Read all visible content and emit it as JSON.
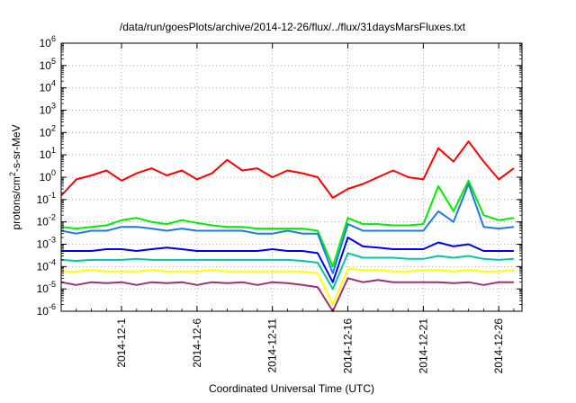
{
  "chart_data": {
    "type": "line",
    "title": "/data/run/goesPlots/archive/2014-12-26/flux/../flux/31daysMarsFluxes.txt",
    "xlabel": "Coordinated Universal Time (UTC)",
    "ylabel_base": "protons/cm",
    "ylabel_sup": "2",
    "ylabel_rest": "-s-sr-MeV",
    "y_scale": "log",
    "ylim": [
      1e-06,
      1000000.0
    ],
    "y_ticks": [
      {
        "base": "10",
        "exp": "-6",
        "value": 1e-06
      },
      {
        "base": "10",
        "exp": "-5",
        "value": 1e-05
      },
      {
        "base": "10",
        "exp": "-4",
        "value": 0.0001
      },
      {
        "base": "10",
        "exp": "-3",
        "value": 0.001
      },
      {
        "base": "10",
        "exp": "-2",
        "value": 0.01
      },
      {
        "base": "10",
        "exp": "-1",
        "value": 0.1
      },
      {
        "base": "10",
        "exp": "0",
        "value": 1
      },
      {
        "base": "10",
        "exp": "1",
        "value": 10
      },
      {
        "base": "10",
        "exp": "2",
        "value": 100
      },
      {
        "base": "10",
        "exp": "3",
        "value": 1000
      },
      {
        "base": "10",
        "exp": "4",
        "value": 10000
      },
      {
        "base": "10",
        "exp": "5",
        "value": 100000
      },
      {
        "base": "10",
        "exp": "6",
        "value": 1000000
      }
    ],
    "x_range_days": [
      2014.1127,
      2014.1227
    ],
    "x_start": "2014-11-27T00:00",
    "x_end": "2014-12-27T13:00",
    "x_ticks": [
      "2014-12-1",
      "2014-12-6",
      "2014-12-11",
      "2014-12-16",
      "2014-12-21",
      "2014-12-26"
    ],
    "x_tick_dates": [
      "2014-12-01",
      "2014-12-06",
      "2014-12-11",
      "2014-12-16",
      "2014-12-21",
      "2014-12-26"
    ],
    "grid": true,
    "legend": "none",
    "series": [
      {
        "color": "#ff0000",
        "dates": [
          "2014-11-27",
          "2014-11-28",
          "2014-11-29",
          "2014-11-30",
          "2014-12-01",
          "2014-12-02",
          "2014-12-03",
          "2014-12-04",
          "2014-12-05",
          "2014-12-06",
          "2014-12-07",
          "2014-12-08",
          "2014-12-09",
          "2014-12-10",
          "2014-12-11",
          "2014-12-12",
          "2014-12-13",
          "2014-12-14",
          "2014-12-15",
          "2014-12-16",
          "2014-12-17",
          "2014-12-18",
          "2014-12-19",
          "2014-12-20",
          "2014-12-21",
          "2014-12-22",
          "2014-12-23",
          "2014-12-24",
          "2014-12-25",
          "2014-12-26",
          "2014-12-27"
        ],
        "values": [
          0.15,
          0.8,
          1.2,
          2.0,
          0.7,
          1.5,
          2.5,
          1.2,
          2.0,
          0.8,
          1.5,
          6.0,
          2.0,
          2.5,
          1.0,
          2.0,
          1.5,
          1.0,
          0.12,
          0.3,
          0.5,
          1.0,
          2.0,
          1.0,
          0.8,
          20.0,
          5.0,
          40.0,
          5.0,
          0.8,
          2.5
        ]
      },
      {
        "color": "#00ee00",
        "dates": [
          "2014-11-27",
          "2014-11-28",
          "2014-11-29",
          "2014-11-30",
          "2014-12-01",
          "2014-12-02",
          "2014-12-03",
          "2014-12-04",
          "2014-12-05",
          "2014-12-06",
          "2014-12-07",
          "2014-12-08",
          "2014-12-09",
          "2014-12-10",
          "2014-12-11",
          "2014-12-12",
          "2014-12-13",
          "2014-12-14",
          "2014-12-15",
          "2014-12-16",
          "2014-12-17",
          "2014-12-18",
          "2014-12-19",
          "2014-12-20",
          "2014-12-21",
          "2014-12-22",
          "2014-12-23",
          "2014-12-24",
          "2014-12-25",
          "2014-12-26",
          "2014-12-27"
        ],
        "values": [
          0.006,
          0.005,
          0.006,
          0.007,
          0.012,
          0.015,
          0.01,
          0.008,
          0.012,
          0.009,
          0.007,
          0.006,
          0.006,
          0.005,
          0.005,
          0.005,
          0.005,
          0.004,
          0.0001,
          0.015,
          0.008,
          0.008,
          0.007,
          0.007,
          0.008,
          0.4,
          0.03,
          0.7,
          0.02,
          0.012,
          0.015
        ]
      },
      {
        "color": "#1e78e6",
        "dates": [
          "2014-11-27",
          "2014-11-28",
          "2014-11-29",
          "2014-11-30",
          "2014-12-01",
          "2014-12-02",
          "2014-12-03",
          "2014-12-04",
          "2014-12-05",
          "2014-12-06",
          "2014-12-07",
          "2014-12-08",
          "2014-12-09",
          "2014-12-10",
          "2014-12-11",
          "2014-12-12",
          "2014-12-13",
          "2014-12-14",
          "2014-12-15",
          "2014-12-16",
          "2014-12-17",
          "2014-12-18",
          "2014-12-19",
          "2014-12-20",
          "2014-12-21",
          "2014-12-22",
          "2014-12-23",
          "2014-12-24",
          "2014-12-25",
          "2014-12-26",
          "2014-12-27"
        ],
        "values": [
          0.004,
          0.003,
          0.004,
          0.004,
          0.006,
          0.006,
          0.005,
          0.004,
          0.005,
          0.004,
          0.004,
          0.004,
          0.004,
          0.003,
          0.003,
          0.004,
          0.003,
          0.003,
          5e-05,
          0.008,
          0.004,
          0.004,
          0.004,
          0.004,
          0.004,
          0.03,
          0.01,
          0.5,
          0.006,
          0.005,
          0.006
        ]
      },
      {
        "color": "#0000ee",
        "dates": [
          "2014-11-27",
          "2014-11-28",
          "2014-11-29",
          "2014-11-30",
          "2014-12-01",
          "2014-12-02",
          "2014-12-03",
          "2014-12-04",
          "2014-12-05",
          "2014-12-06",
          "2014-12-07",
          "2014-12-08",
          "2014-12-09",
          "2014-12-10",
          "2014-12-11",
          "2014-12-12",
          "2014-12-13",
          "2014-12-14",
          "2014-12-15",
          "2014-12-16",
          "2014-12-17",
          "2014-12-18",
          "2014-12-19",
          "2014-12-20",
          "2014-12-21",
          "2014-12-22",
          "2014-12-23",
          "2014-12-24",
          "2014-12-25",
          "2014-12-26",
          "2014-12-27"
        ],
        "values": [
          0.0005,
          0.0005,
          0.0005,
          0.0006,
          0.0006,
          0.0005,
          0.0006,
          0.0007,
          0.0006,
          0.0005,
          0.0005,
          0.0005,
          0.0005,
          0.0005,
          0.0006,
          0.0005,
          0.0005,
          0.0004,
          2e-05,
          0.002,
          0.0008,
          0.0007,
          0.0006,
          0.0006,
          0.0006,
          0.0012,
          0.0008,
          0.001,
          0.0005,
          0.0005,
          0.0005
        ]
      },
      {
        "color": "#00c8a0",
        "dates": [
          "2014-11-27",
          "2014-11-28",
          "2014-11-29",
          "2014-11-30",
          "2014-12-01",
          "2014-12-02",
          "2014-12-03",
          "2014-12-04",
          "2014-12-05",
          "2014-12-06",
          "2014-12-07",
          "2014-12-08",
          "2014-12-09",
          "2014-12-10",
          "2014-12-11",
          "2014-12-12",
          "2014-12-13",
          "2014-12-14",
          "2014-12-15",
          "2014-12-16",
          "2014-12-17",
          "2014-12-18",
          "2014-12-19",
          "2014-12-20",
          "2014-12-21",
          "2014-12-22",
          "2014-12-23",
          "2014-12-24",
          "2014-12-25",
          "2014-12-26",
          "2014-12-27"
        ],
        "values": [
          0.0002,
          0.00018,
          0.0002,
          0.0002,
          0.0002,
          0.00022,
          0.0002,
          0.0002,
          0.0002,
          0.0002,
          0.0002,
          0.0002,
          0.0002,
          0.0002,
          0.0002,
          0.0002,
          0.00018,
          0.00015,
          1e-05,
          0.0004,
          0.00025,
          0.00025,
          0.00025,
          0.00022,
          0.00022,
          0.0003,
          0.00025,
          0.0003,
          0.00022,
          0.0002,
          0.00022
        ]
      },
      {
        "color": "#ffff00",
        "dates": [
          "2014-11-27",
          "2014-11-28",
          "2014-11-29",
          "2014-11-30",
          "2014-12-01",
          "2014-12-02",
          "2014-12-03",
          "2014-12-04",
          "2014-12-05",
          "2014-12-06",
          "2014-12-07",
          "2014-12-08",
          "2014-12-09",
          "2014-12-10",
          "2014-12-11",
          "2014-12-12",
          "2014-12-13",
          "2014-12-14",
          "2014-12-15",
          "2014-12-16",
          "2014-12-17",
          "2014-12-18",
          "2014-12-19",
          "2014-12-20",
          "2014-12-21",
          "2014-12-22",
          "2014-12-23",
          "2014-12-24",
          "2014-12-25",
          "2014-12-26",
          "2014-12-27"
        ],
        "values": [
          6e-05,
          6e-05,
          7e-05,
          6e-05,
          6e-05,
          6e-05,
          7e-05,
          6e-05,
          6e-05,
          6e-05,
          7e-05,
          6e-05,
          6e-05,
          6e-05,
          6e-05,
          6e-05,
          6e-05,
          5e-05,
          2e-06,
          8e-05,
          7e-05,
          7e-05,
          6e-05,
          6e-05,
          7e-05,
          7e-05,
          6e-05,
          7e-05,
          6e-05,
          6e-05,
          7e-05
        ]
      },
      {
        "color": "#a0306e",
        "dates": [
          "2014-11-27",
          "2014-11-28",
          "2014-11-29",
          "2014-11-30",
          "2014-12-01",
          "2014-12-02",
          "2014-12-03",
          "2014-12-04",
          "2014-12-05",
          "2014-12-06",
          "2014-12-07",
          "2014-12-08",
          "2014-12-09",
          "2014-12-10",
          "2014-12-11",
          "2014-12-12",
          "2014-12-13",
          "2014-12-14",
          "2014-12-15",
          "2014-12-16",
          "2014-12-17",
          "2014-12-18",
          "2014-12-19",
          "2014-12-20",
          "2014-12-21",
          "2014-12-22",
          "2014-12-23",
          "2014-12-24",
          "2014-12-25",
          "2014-12-26",
          "2014-12-27"
        ],
        "values": [
          2e-05,
          1.5e-05,
          2e-05,
          1.8e-05,
          2e-05,
          1.5e-05,
          2e-05,
          1.8e-05,
          2e-05,
          1.5e-05,
          2e-05,
          1.8e-05,
          2e-05,
          1.5e-05,
          2e-05,
          1.8e-05,
          1.5e-05,
          1.2e-05,
          1e-06,
          3e-05,
          2e-05,
          2.5e-05,
          2e-05,
          2e-05,
          2e-05,
          2e-05,
          1.8e-05,
          2e-05,
          1.5e-05,
          2e-05,
          2e-05
        ]
      }
    ]
  }
}
